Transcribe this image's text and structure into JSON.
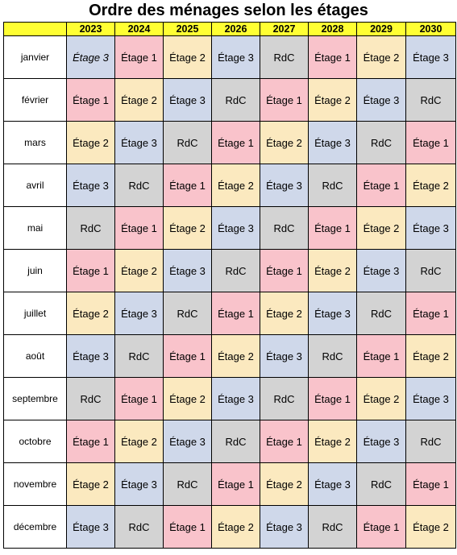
{
  "title": "Ordre des ménages selon les étages",
  "years": [
    "2023",
    "2024",
    "2025",
    "2026",
    "2027",
    "2028",
    "2029",
    "2030"
  ],
  "months": [
    "janvier",
    "février",
    "mars",
    "avril",
    "mai",
    "juin",
    "juillet",
    "août",
    "septembre",
    "octobre",
    "novembre",
    "décembre"
  ],
  "colors": {
    "header": "#ffff33",
    "RdC": "#d3d3d3",
    "Étage 1": "#f9c3cb",
    "Étage 2": "#fbe9bf",
    "Étage 3": "#cfd8ea"
  },
  "rows": [
    [
      "Étage 3",
      "Étage 1",
      "Étage 2",
      "Étage 3",
      "RdC",
      "Étage 1",
      "Étage 2",
      "Étage 3"
    ],
    [
      "Étage 1",
      "Étage 2",
      "Étage 3",
      "RdC",
      "Étage 1",
      "Étage 2",
      "Étage 3",
      "RdC"
    ],
    [
      "Étage 2",
      "Étage 3",
      "RdC",
      "Étage 1",
      "Étage 2",
      "Étage 3",
      "RdC",
      "Étage 1"
    ],
    [
      "Étage 3",
      "RdC",
      "Étage 1",
      "Étage 2",
      "Étage 3",
      "RdC",
      "Étage 1",
      "Étage 2"
    ],
    [
      "RdC",
      "Étage 1",
      "Étage 2",
      "Étage 3",
      "RdC",
      "Étage 1",
      "Étage 2",
      "Étage 3"
    ],
    [
      "Étage 1",
      "Étage 2",
      "Étage 3",
      "RdC",
      "Étage 1",
      "Étage 2",
      "Étage 3",
      "RdC"
    ],
    [
      "Étage 2",
      "Étage 3",
      "RdC",
      "Étage 1",
      "Étage 2",
      "Étage 3",
      "RdC",
      "Étage 1"
    ],
    [
      "Étage 3",
      "RdC",
      "Étage 1",
      "Étage 2",
      "Étage 3",
      "RdC",
      "Étage 1",
      "Étage 2"
    ],
    [
      "RdC",
      "Étage 1",
      "Étage 2",
      "Étage 3",
      "RdC",
      "Étage 1",
      "Étage 2",
      "Étage 3"
    ],
    [
      "Étage 1",
      "Étage 2",
      "Étage 3",
      "RdC",
      "Étage 1",
      "Étage 2",
      "Étage 3",
      "RdC"
    ],
    [
      "Étage 2",
      "Étage 3",
      "RdC",
      "Étage 1",
      "Étage 2",
      "Étage 3",
      "RdC",
      "Étage 1"
    ],
    [
      "Étage 3",
      "RdC",
      "Étage 1",
      "Étage 2",
      "Étage 3",
      "RdC",
      "Étage 1",
      "Étage 2"
    ]
  ],
  "italic_cells": [
    [
      0,
      0
    ]
  ]
}
